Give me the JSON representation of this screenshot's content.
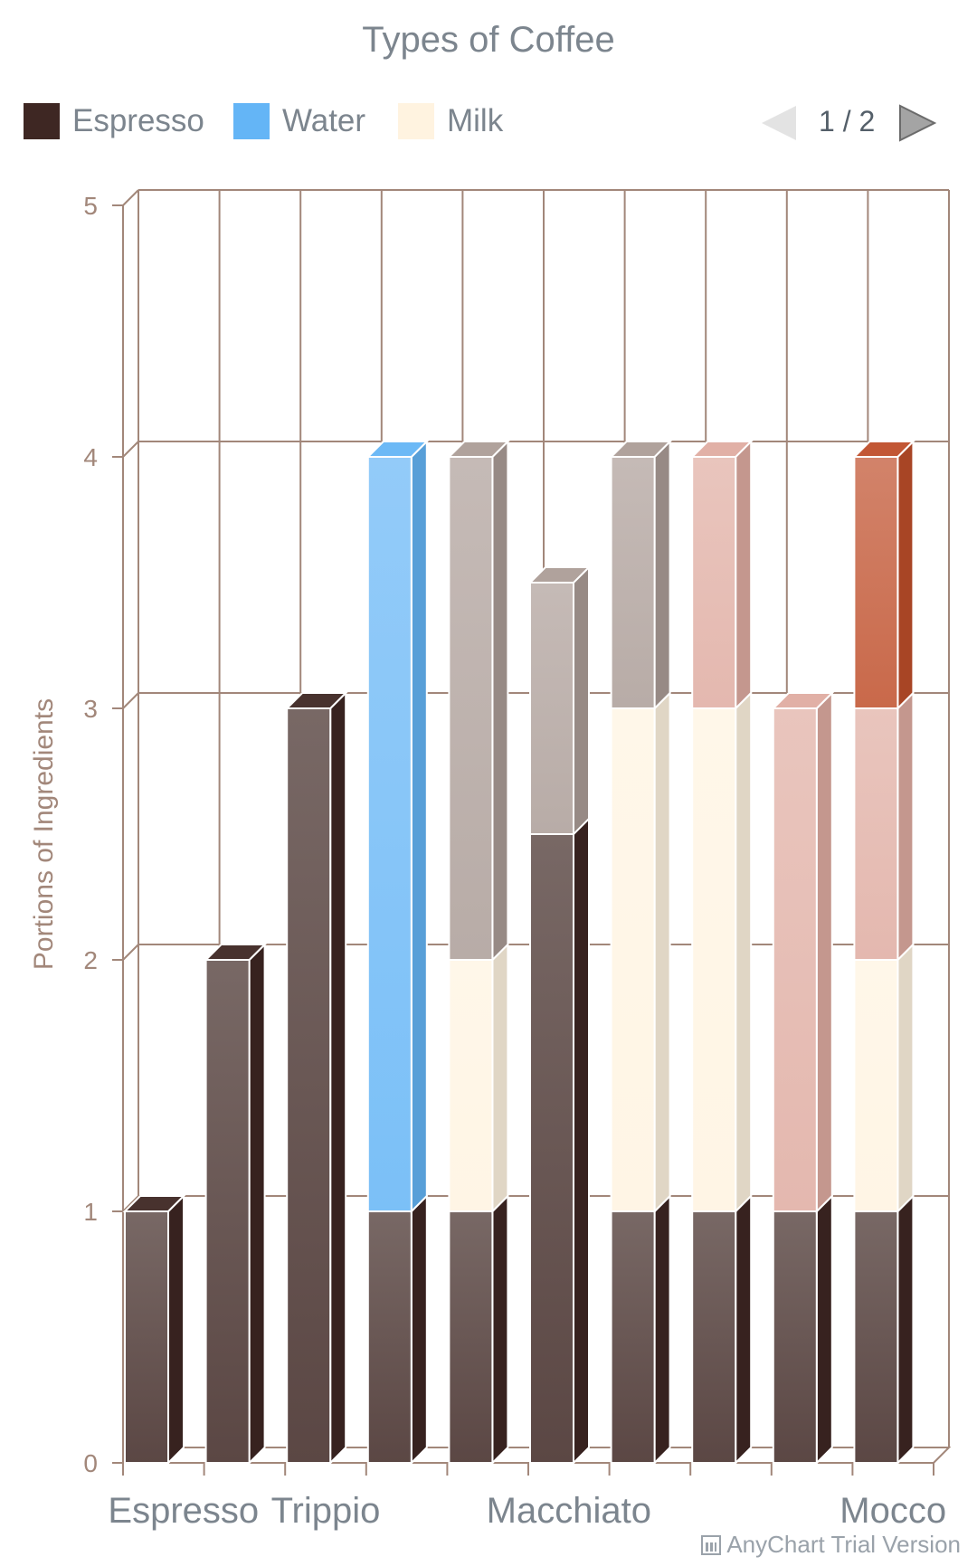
{
  "chart_data": {
    "type": "bar",
    "stacked": true,
    "three_d": true,
    "title": "Types of Coffee",
    "xlabel": "",
    "ylabel": "Portions of Ingredients",
    "ylim": [
      0,
      5
    ],
    "yticks": [
      "0",
      "1",
      "2",
      "3",
      "4",
      "5"
    ],
    "grid": true,
    "legend_position": "top",
    "categories": [
      "Espresso",
      "",
      "Trippio",
      "",
      "",
      "Macchiato",
      "",
      "",
      "",
      "Mocco"
    ],
    "x_tick_labels": [
      "Espresso",
      "Trippio",
      "Macchiato",
      "Mocco"
    ],
    "series": [
      {
        "name": "Espresso",
        "color": "#3e2723",
        "values": [
          1,
          2,
          3,
          1,
          1,
          2.5,
          1,
          1,
          1,
          1
        ]
      },
      {
        "name": "Water",
        "color": "#64b5f6",
        "values": [
          0,
          0,
          0,
          3,
          0,
          0,
          0,
          0,
          0,
          0
        ]
      },
      {
        "name": "Milk",
        "color": "#fff3e0",
        "values": [
          0,
          0,
          0,
          0,
          1,
          0,
          2,
          2,
          0,
          1
        ]
      },
      {
        "name": "",
        "color": "#ac9d97",
        "values": [
          0,
          0,
          0,
          0,
          2,
          1,
          1,
          0,
          0,
          0
        ]
      },
      {
        "name": "",
        "color": "#dfaca1",
        "values": [
          0,
          0,
          0,
          0,
          0,
          0,
          0,
          1,
          2,
          1
        ]
      },
      {
        "name": "",
        "color": "#bf4e2a",
        "values": [
          0,
          0,
          0,
          0,
          0,
          0,
          0,
          0,
          0,
          1
        ]
      }
    ]
  },
  "legend": [
    {
      "label": "Espresso",
      "color": "#3e2723"
    },
    {
      "label": "Water",
      "color": "#64b5f6"
    },
    {
      "label": "Milk",
      "color": "#fff3e0"
    }
  ],
  "pager": {
    "text": "1 / 2"
  },
  "watermark": "AnyChart Trial Version"
}
